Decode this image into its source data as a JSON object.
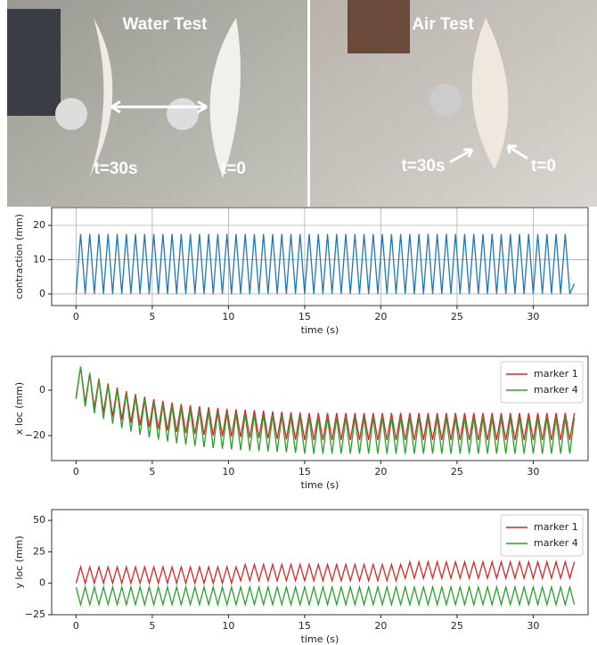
{
  "photo": {
    "panels": [
      {
        "title": "Water Test",
        "labels": [
          "t=30s",
          "t=0"
        ]
      },
      {
        "title": "Air Test",
        "labels": [
          "t=30s",
          "t=0"
        ]
      }
    ]
  },
  "chart_data": [
    {
      "type": "line",
      "ylabel": "contraction (mm)",
      "xlabel": "time (s)",
      "color": "#1f77b4",
      "grid": true,
      "xlim": [
        -1.6,
        33.6
      ],
      "xticks": [
        0,
        5,
        10,
        15,
        20,
        25,
        30
      ],
      "ylim": [
        -3.4,
        25.2
      ],
      "yticks": [
        0,
        10,
        20
      ],
      "x": [
        0,
        0.3,
        0.6,
        0.9,
        1.2,
        1.5,
        1.8,
        2.1,
        2.4,
        2.7,
        3,
        3.3,
        3.6,
        3.9,
        4.2,
        4.5,
        4.8,
        5.1,
        5.4,
        5.7,
        6,
        6.3,
        6.6,
        6.9,
        7.2,
        7.5,
        7.8,
        8.1,
        8.4,
        8.7,
        9,
        9.3,
        9.6,
        9.9,
        10.2,
        10.5,
        10.8,
        11.1,
        11.4,
        11.7,
        12,
        12.3,
        12.6,
        12.9,
        13.2,
        13.5,
        13.8,
        14.1,
        14.4,
        14.7,
        15,
        15.3,
        15.6,
        15.9,
        16.2,
        16.5,
        16.8,
        17.1,
        17.4,
        17.7,
        18,
        18.3,
        18.6,
        18.9,
        19.2,
        19.5,
        19.8,
        20.1,
        20.4,
        20.7,
        21,
        21.3,
        21.6,
        21.9,
        22.2,
        22.5,
        22.8,
        23.1,
        23.4,
        23.7,
        24,
        24.3,
        24.6,
        24.9,
        25.2,
        25.5,
        25.8,
        26.1,
        26.4,
        26.7,
        27,
        27.3,
        27.6,
        27.9,
        28.2,
        28.5,
        28.8,
        29.1,
        29.4,
        29.7,
        30,
        30.3,
        30.6,
        30.9,
        31.2,
        31.5,
        31.8,
        32.1,
        32.4,
        32.7
      ],
      "values": [
        0,
        17.5,
        0,
        17.5,
        0,
        17.5,
        0,
        17.5,
        0,
        17.5,
        0,
        17.5,
        0,
        17.5,
        0,
        17.5,
        0,
        17.5,
        0,
        17.5,
        0,
        17.5,
        0,
        17.5,
        0,
        17.5,
        0,
        17.5,
        0,
        17.5,
        0,
        17.5,
        0,
        17.5,
        0,
        17.5,
        0,
        17.5,
        0,
        17.5,
        0,
        17.5,
        0,
        17.5,
        0,
        17.5,
        0,
        17.5,
        0,
        17.5,
        0,
        17.5,
        0,
        17.5,
        0,
        17.5,
        0,
        17.5,
        0,
        17.5,
        0,
        17.5,
        0,
        17.5,
        0,
        17.5,
        0,
        17.5,
        0,
        17.5,
        0,
        17.5,
        0,
        17.5,
        0,
        17.5,
        0,
        17.5,
        0,
        17.5,
        0,
        17.5,
        0,
        17.5,
        0,
        17.5,
        0,
        17.5,
        0,
        17.5,
        0,
        17.5,
        0,
        17.5,
        0,
        17.5,
        0,
        17.5,
        0,
        17.5,
        0,
        17.5,
        0,
        17.5,
        0,
        17.5,
        0,
        17.5,
        0,
        3
      ]
    },
    {
      "type": "line",
      "ylabel": "x loc (mm)",
      "xlabel": "time (s)",
      "grid": false,
      "legend": "upper right",
      "xlim": [
        -1.6,
        33.6
      ],
      "xticks": [
        0,
        5,
        10,
        15,
        20,
        25,
        30
      ],
      "ylim": [
        -31,
        14.9
      ],
      "yticks": [
        {
          "value": -20,
          "label": "−20"
        },
        0
      ],
      "x": [
        0,
        0.3,
        0.6,
        0.9,
        1.2,
        1.5,
        1.8,
        2.1,
        2.4,
        2.7,
        3,
        3.3,
        3.6,
        3.9,
        4.2,
        4.5,
        4.8,
        5.1,
        5.4,
        5.7,
        6,
        6.3,
        6.6,
        6.9,
        7.2,
        7.5,
        7.8,
        8.1,
        8.4,
        8.7,
        9,
        9.3,
        9.6,
        9.9,
        10.2,
        10.5,
        10.8,
        11.1,
        11.4,
        11.7,
        12,
        12.3,
        12.6,
        12.9,
        13.2,
        13.5,
        13.8,
        14.1,
        14.4,
        14.7,
        15,
        15.3,
        15.6,
        15.9,
        16.2,
        16.5,
        16.8,
        17.1,
        17.4,
        17.7,
        18,
        18.3,
        18.6,
        18.9,
        19.2,
        19.5,
        19.8,
        20.1,
        20.4,
        20.7,
        21,
        21.3,
        21.6,
        21.9,
        22.2,
        22.5,
        22.8,
        23.1,
        23.4,
        23.7,
        24,
        24.3,
        24.6,
        24.9,
        25.2,
        25.5,
        25.8,
        26.1,
        26.4,
        26.7,
        27,
        27.3,
        27.6,
        27.9,
        28.2,
        28.5,
        28.8,
        29.1,
        29.4,
        29.7,
        30,
        30.3,
        30.6,
        30.9,
        31.2,
        31.5,
        31.8,
        32.1,
        32.4,
        32.7
      ],
      "series": [
        {
          "name": "marker 1",
          "color": "#d62728",
          "values": [
            -3,
            10.4,
            -5.6,
            7.6,
            -7.9,
            5.1,
            -9.9,
            3,
            -11.6,
            1.2,
            -13,
            -0.4,
            -14.3,
            -1.7,
            -15.4,
            -2.9,
            -16.3,
            -3.9,
            -17.1,
            -4.7,
            -17.8,
            -5.4,
            -18.4,
            -6.1,
            -18.9,
            -6.6,
            -19.3,
            -7.1,
            -19.7,
            -7.5,
            -20,
            -7.8,
            -20.3,
            -8.2,
            -20.5,
            -8.4,
            -20.7,
            -8.6,
            -20.9,
            -8.8,
            -21.1,
            -9,
            -21.3,
            -9.3,
            -21.5,
            -9.5,
            -21.7,
            -9.7,
            -21.8,
            -9.8,
            -22,
            -10,
            -22,
            -10,
            -22,
            -10,
            -22,
            -10,
            -22,
            -10,
            -22,
            -10,
            -22,
            -10,
            -22,
            -10,
            -22,
            -10,
            -22,
            -10,
            -22,
            -10,
            -22,
            -10,
            -22,
            -10,
            -22,
            -10,
            -22,
            -10,
            -22,
            -10,
            -22,
            -10,
            -22,
            -10,
            -22,
            -10,
            -22,
            -10,
            -22,
            -10,
            -22,
            -10,
            -22,
            -10,
            -22,
            -10,
            -22,
            -10,
            -22,
            -10,
            -22,
            -10,
            -22,
            -10,
            -22,
            -10,
            -22,
            -10
          ]
        },
        {
          "name": "marker 4",
          "color": "#2ca02c",
          "values": [
            -4,
            10.3,
            -7.3,
            7.2,
            -10.2,
            4.5,
            -12.7,
            2.2,
            -14.8,
            0.2,
            -16.7,
            -1.5,
            -18.2,
            -3,
            -19.6,
            -4.2,
            -20.8,
            -5.3,
            -21.8,
            -6.2,
            -22.6,
            -7,
            -23.4,
            -7.7,
            -24,
            -8.3,
            -24.6,
            -8.8,
            -25.1,
            -9.3,
            -25.5,
            -9.6,
            -25.8,
            -10,
            -26.1,
            -10.3,
            -26.4,
            -10.5,
            -26.6,
            -10.7,
            -26.8,
            -10.9,
            -27,
            -11.1,
            -27.2,
            -11.3,
            -27.4,
            -11.5,
            -27.6,
            -11.7,
            -28,
            -12,
            -28,
            -12,
            -28,
            -12,
            -28,
            -12,
            -28,
            -12,
            -28,
            -12,
            -28,
            -12,
            -28,
            -12,
            -28,
            -12,
            -28,
            -12,
            -28,
            -12,
            -28,
            -12,
            -28,
            -12,
            -28,
            -12,
            -28,
            -12,
            -28,
            -12,
            -28,
            -12,
            -28,
            -12,
            -28,
            -12,
            -28,
            -12,
            -28,
            -12,
            -28,
            -12,
            -28,
            -12,
            -28,
            -12,
            -28,
            -12,
            -28,
            -12,
            -28,
            -12,
            -28,
            -12,
            -28,
            -12,
            -28,
            -12
          ]
        }
      ]
    },
    {
      "type": "line",
      "ylabel": "y loc (mm)",
      "xlabel": "time (s)",
      "grid": false,
      "legend": "upper right",
      "xlim": [
        -1.6,
        33.6
      ],
      "xticks": [
        0,
        5,
        10,
        15,
        20,
        25,
        30
      ],
      "ylim": [
        -25,
        58.6
      ],
      "yticks": [
        {
          "value": -25,
          "label": "−25"
        },
        0,
        25,
        50
      ],
      "x": [
        0,
        0.3,
        0.6,
        0.9,
        1.2,
        1.5,
        1.8,
        2.1,
        2.4,
        2.7,
        3,
        3.3,
        3.6,
        3.9,
        4.2,
        4.5,
        4.8,
        5.1,
        5.4,
        5.7,
        6,
        6.3,
        6.6,
        6.9,
        7.2,
        7.5,
        7.8,
        8.1,
        8.4,
        8.7,
        9,
        9.3,
        9.6,
        9.9,
        10.2,
        10.5,
        10.8,
        11.1,
        11.4,
        11.7,
        12,
        12.3,
        12.6,
        12.9,
        13.2,
        13.5,
        13.8,
        14.1,
        14.4,
        14.7,
        15,
        15.3,
        15.6,
        15.9,
        16.2,
        16.5,
        16.8,
        17.1,
        17.4,
        17.7,
        18,
        18.3,
        18.6,
        18.9,
        19.2,
        19.5,
        19.8,
        20.1,
        20.4,
        20.7,
        21,
        21.3,
        21.6,
        21.9,
        22.2,
        22.5,
        22.8,
        23.1,
        23.4,
        23.7,
        24,
        24.3,
        24.6,
        24.9,
        25.2,
        25.5,
        25.8,
        26.1,
        26.4,
        26.7,
        27,
        27.3,
        27.6,
        27.9,
        28.2,
        28.5,
        28.8,
        29.1,
        29.4,
        29.7,
        30,
        30.3,
        30.6,
        30.9,
        31.2,
        31.5,
        31.8,
        32.1,
        32.4,
        32.7
      ],
      "series": [
        {
          "name": "marker 1",
          "color": "#d62728",
          "values": [
            0,
            13,
            0,
            13,
            0,
            13,
            0,
            13,
            0,
            13,
            0,
            13,
            0,
            13,
            0,
            13,
            0,
            13,
            0,
            13,
            0,
            13,
            0,
            13,
            0,
            13,
            0,
            13,
            0,
            13,
            0,
            13,
            0,
            13,
            0,
            13,
            2,
            15,
            2,
            15,
            2,
            15,
            2,
            15,
            2,
            15,
            2,
            15,
            2,
            15,
            2,
            15,
            2,
            15,
            2,
            15,
            2,
            15,
            2,
            15,
            2,
            15,
            2,
            15,
            2,
            15,
            2,
            15,
            2,
            15,
            2,
            15,
            4,
            17,
            4,
            17,
            4,
            17,
            4,
            17,
            4,
            17,
            4,
            17,
            4,
            17,
            4,
            17,
            4,
            17,
            4,
            17,
            4,
            17,
            4,
            17,
            4,
            17,
            4,
            17,
            4,
            17,
            4,
            17,
            4,
            17,
            4,
            17,
            4,
            17
          ]
        },
        {
          "name": "marker 4",
          "color": "#2ca02c",
          "values": [
            -3,
            -17,
            -3,
            -17,
            -3,
            -17,
            -3,
            -17,
            -3,
            -17,
            -3,
            -17,
            -3,
            -17,
            -3,
            -17,
            -3,
            -17,
            -3,
            -17,
            -3,
            -17,
            -3,
            -17,
            -3,
            -17,
            -3,
            -17,
            -3,
            -17,
            -3,
            -17,
            -3,
            -17,
            -3,
            -17,
            -3,
            -17,
            -3,
            -17,
            -3,
            -17,
            -3,
            -17,
            -3,
            -17,
            -3,
            -17,
            -3,
            -17,
            -3,
            -17,
            -3,
            -17,
            -3,
            -17,
            -3,
            -17,
            -3,
            -17,
            -3,
            -17,
            -3,
            -17,
            -3,
            -17,
            -3,
            -17,
            -3,
            -17,
            -3,
            -17,
            -3,
            -17,
            -3,
            -17,
            -3,
            -17,
            -3,
            -17,
            -3,
            -17,
            -3,
            -17,
            -3,
            -17,
            -3,
            -17,
            -3,
            -17,
            -3,
            -17,
            -3,
            -17,
            -3,
            -17,
            -3,
            -17,
            -3,
            -17,
            -3,
            -17,
            -3,
            -17,
            -3,
            -17,
            -3,
            -17,
            -3,
            -17
          ]
        }
      ]
    }
  ]
}
